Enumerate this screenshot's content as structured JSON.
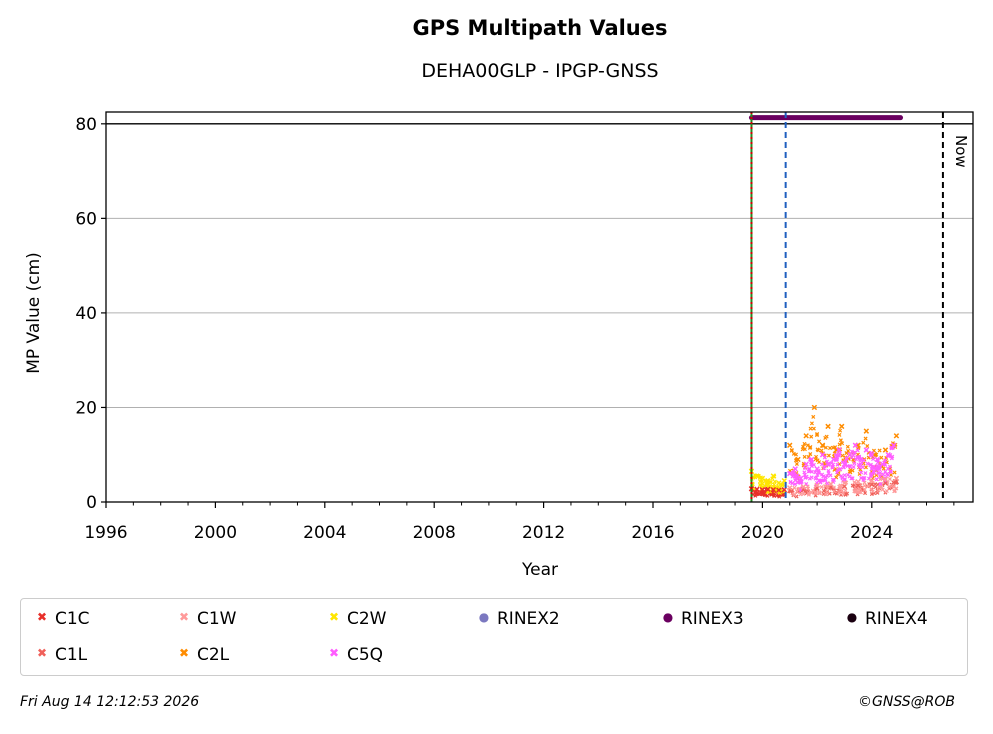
{
  "chart_data": {
    "type": "scatter",
    "title": "GPS Multipath Values",
    "subtitle": "DEHA00GLP - IPGP-GNSS",
    "xlabel": "Year",
    "ylabel": "MP Value (cm)",
    "xlim": [
      1996,
      2027.7
    ],
    "ylim": [
      0,
      82.5
    ],
    "xticks": [
      1996,
      2000,
      2004,
      2008,
      2012,
      2016,
      2020,
      2024
    ],
    "yticks": [
      0,
      20,
      40,
      60,
      80
    ],
    "grid": "y",
    "hline": 80,
    "vlines": [
      {
        "x": 2019.6,
        "color": "#228b22",
        "style": "solid"
      },
      {
        "x": 2019.6,
        "color": "#cc0000",
        "style": "dotted"
      },
      {
        "x": 2020.85,
        "color": "#1f5fbf",
        "style": "dashed"
      },
      {
        "x": 2026.6,
        "color": "#000000",
        "style": "dashed",
        "label": "Now"
      }
    ],
    "series": [
      {
        "name": "C1C",
        "color": "#e8302a",
        "marker": "x",
        "points": [
          [
            2019.6,
            2.8
          ],
          [
            2019.8,
            2.7
          ],
          [
            2020.0,
            2.6
          ],
          [
            2020.2,
            2.7
          ],
          [
            2020.4,
            2.6
          ],
          [
            2020.6,
            2.5
          ],
          [
            2020.8,
            2.6
          ]
        ]
      },
      {
        "name": "C1L",
        "color": "#f0605a",
        "marker": "x",
        "points": [
          [
            2021.0,
            2.4
          ],
          [
            2021.5,
            2.6
          ],
          [
            2022.0,
            2.9
          ],
          [
            2022.5,
            3.1
          ],
          [
            2023.0,
            3.3
          ],
          [
            2023.5,
            3.5
          ],
          [
            2024.0,
            3.7
          ],
          [
            2024.5,
            4.0
          ],
          [
            2024.9,
            4.3
          ]
        ]
      },
      {
        "name": "C1W",
        "color": "#ff9a9a",
        "marker": "x",
        "points": [
          [
            2021.0,
            3.0
          ],
          [
            2021.5,
            3.2
          ],
          [
            2022.0,
            3.5
          ],
          [
            2022.5,
            3.8
          ],
          [
            2023.0,
            4.0
          ],
          [
            2023.5,
            4.3
          ],
          [
            2024.0,
            4.5
          ],
          [
            2024.5,
            4.8
          ],
          [
            2024.9,
            5.0
          ]
        ]
      },
      {
        "name": "C2L",
        "color": "#ff8c00",
        "marker": "x",
        "points": [
          [
            2021.0,
            12
          ],
          [
            2021.3,
            9
          ],
          [
            2021.6,
            14
          ],
          [
            2021.9,
            20
          ],
          [
            2022.2,
            12
          ],
          [
            2022.4,
            16
          ],
          [
            2022.7,
            11
          ],
          [
            2022.9,
            16
          ],
          [
            2023.2,
            10
          ],
          [
            2023.5,
            12
          ],
          [
            2023.8,
            15
          ],
          [
            2024.1,
            10
          ],
          [
            2024.5,
            11
          ],
          [
            2024.9,
            14
          ]
        ]
      },
      {
        "name": "C2W",
        "color": "#ffe600",
        "marker": "x",
        "points": [
          [
            2019.6,
            6.5
          ],
          [
            2019.8,
            5.5
          ],
          [
            2020.0,
            5.0
          ],
          [
            2020.2,
            4.5
          ],
          [
            2020.4,
            5.5
          ],
          [
            2020.6,
            4.0
          ],
          [
            2020.8,
            4.5
          ]
        ]
      },
      {
        "name": "C5Q",
        "color": "#ff5cff",
        "marker": "x",
        "points": [
          [
            2021.0,
            6
          ],
          [
            2021.2,
            7
          ],
          [
            2021.4,
            5
          ],
          [
            2021.6,
            8
          ],
          [
            2021.8,
            9
          ],
          [
            2022.0,
            7
          ],
          [
            2022.2,
            10
          ],
          [
            2022.4,
            8
          ],
          [
            2022.6,
            9
          ],
          [
            2022.8,
            11
          ],
          [
            2023.0,
            8
          ],
          [
            2023.2,
            10
          ],
          [
            2023.4,
            12
          ],
          [
            2023.6,
            9
          ],
          [
            2023.8,
            11
          ],
          [
            2024.0,
            10
          ],
          [
            2024.2,
            9
          ],
          [
            2024.4,
            8
          ],
          [
            2024.6,
            10
          ],
          [
            2024.8,
            12
          ]
        ]
      },
      {
        "name": "RINEX2",
        "color": "#7b78c0",
        "marker": "o",
        "points": []
      },
      {
        "name": "RINEX3",
        "color": "#6a0060",
        "marker": "o",
        "range": [
          2019.6,
          2025.05
        ],
        "y": 81.3
      },
      {
        "name": "RINEX4",
        "color": "#1a0010",
        "marker": "o",
        "points": []
      }
    ]
  },
  "now_label": "Now",
  "footer": {
    "date": "Fri Aug 14 12:12:53 2026",
    "credit": "©GNSS@ROB"
  }
}
